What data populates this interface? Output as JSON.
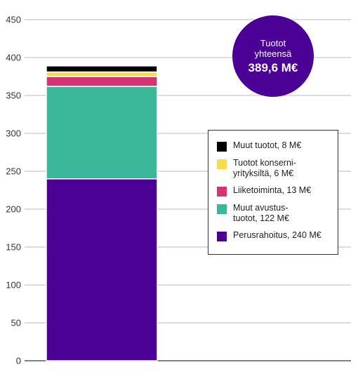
{
  "chart_data": {
    "type": "bar",
    "stacked": true,
    "categories": [
      ""
    ],
    "ylim": [
      0,
      450
    ],
    "yticks": [
      0,
      50,
      100,
      150,
      200,
      250,
      300,
      350,
      400,
      450
    ],
    "grid": true,
    "legend_position": "right",
    "series": [
      {
        "name": "Perusrahoitus, 240 M€",
        "values": [
          240
        ],
        "color": "#4B0096"
      },
      {
        "name": "Muut avustus-\ntuotot, 122 M€",
        "values": [
          122
        ],
        "color": "#3BB79A"
      },
      {
        "name": "Liiketoiminta, 13 M€",
        "values": [
          13
        ],
        "color": "#D63372"
      },
      {
        "name": "Tuotot konserni-\nyrityksiltä, 6 M€",
        "values": [
          6
        ],
        "color": "#F8DC4A"
      },
      {
        "name": "Muut tuotot, 8 M€",
        "values": [
          8
        ],
        "color": "#000000"
      }
    ],
    "total_badge": {
      "label": "Tuotot\nyhteensä",
      "value": "389,6 M€",
      "color": "#4B0096"
    }
  }
}
